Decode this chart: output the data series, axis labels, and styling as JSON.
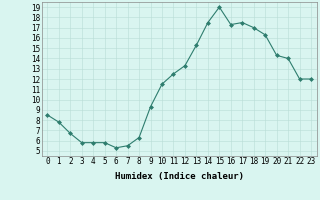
{
  "x": [
    0,
    1,
    2,
    3,
    4,
    5,
    6,
    7,
    8,
    9,
    10,
    11,
    12,
    13,
    14,
    15,
    16,
    17,
    18,
    19,
    20,
    21,
    22,
    23
  ],
  "y": [
    8.5,
    7.8,
    6.7,
    5.8,
    5.8,
    5.8,
    5.3,
    5.5,
    6.3,
    9.3,
    11.5,
    12.5,
    13.3,
    15.3,
    17.5,
    19.0,
    17.3,
    17.5,
    17.0,
    16.3,
    14.3,
    14.0,
    12.0,
    12.0
  ],
  "xlabel": "Humidex (Indice chaleur)",
  "line_color": "#2e7d6e",
  "marker": "D",
  "marker_size": 2,
  "bg_color": "#d9f5f0",
  "grid_color": "#b8ddd6",
  "xlim": [
    -0.5,
    23.5
  ],
  "ylim": [
    4.5,
    19.5
  ],
  "yticks": [
    5,
    6,
    7,
    8,
    9,
    10,
    11,
    12,
    13,
    14,
    15,
    16,
    17,
    18,
    19
  ],
  "xticks": [
    0,
    1,
    2,
    3,
    4,
    5,
    6,
    7,
    8,
    9,
    10,
    11,
    12,
    13,
    14,
    15,
    16,
    17,
    18,
    19,
    20,
    21,
    22,
    23
  ],
  "tick_fontsize": 5.5,
  "xlabel_fontsize": 6.5
}
